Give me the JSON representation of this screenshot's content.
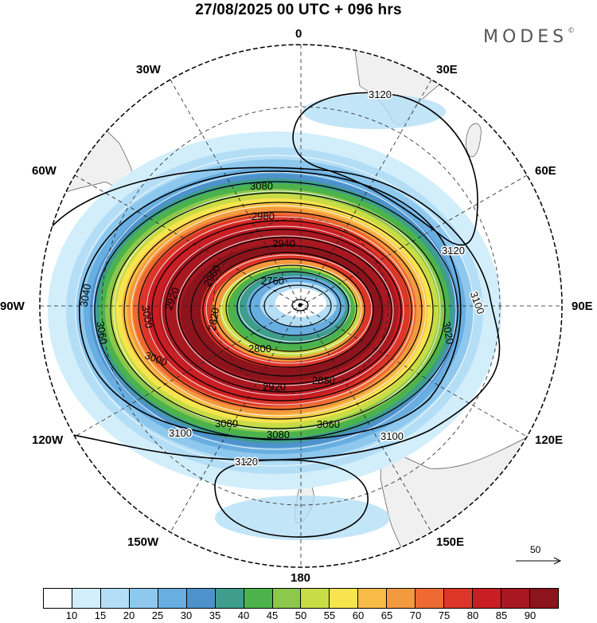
{
  "title": "27/08/2025  00 UTC  + 096 hrs",
  "logo": {
    "text": "MODES",
    "mark": "©"
  },
  "map": {
    "projection": "south-polar-stereographic",
    "longitude_labels": {
      "0": "0",
      "30E": "30E",
      "60E": "60E",
      "90E": "90E",
      "120E": "120E",
      "150E": "150E",
      "180": "180",
      "150W": "150W",
      "120W": "120W",
      "90W": "90W",
      "60W": "60W",
      "30W": "30W"
    },
    "contours": [
      {
        "label": "3120",
        "geopotential_height_m": 3120
      },
      {
        "label": "3100",
        "geopotential_height_m": 3100
      },
      {
        "label": "3080",
        "geopotential_height_m": 3080
      },
      {
        "label": "3060",
        "geopotential_height_m": 3060
      },
      {
        "label": "3040",
        "geopotential_height_m": 3040
      },
      {
        "label": "3020",
        "geopotential_height_m": 3020
      },
      {
        "label": "3000",
        "geopotential_height_m": 3000
      },
      {
        "label": "2980",
        "geopotential_height_m": 2980
      },
      {
        "label": "2960",
        "geopotential_height_m": 2960
      },
      {
        "label": "2940",
        "geopotential_height_m": 2940
      },
      {
        "label": "2920",
        "geopotential_height_m": 2920
      },
      {
        "label": "2900",
        "geopotential_height_m": 2900
      },
      {
        "label": "2880",
        "geopotential_height_m": 2880
      },
      {
        "label": "2860",
        "geopotential_height_m": 2860
      },
      {
        "label": "2840",
        "geopotential_height_m": 2840
      },
      {
        "label": "2820",
        "geopotential_height_m": 2820
      },
      {
        "label": "2800",
        "geopotential_height_m": 2800
      },
      {
        "label": "2780",
        "geopotential_height_m": 2780
      },
      {
        "label": "2760",
        "geopotential_height_m": 2760
      }
    ]
  },
  "reference_vector": {
    "label": "50"
  },
  "colorbar": {
    "ticks": [
      "10",
      "15",
      "20",
      "25",
      "30",
      "35",
      "40",
      "45",
      "50",
      "55",
      "60",
      "65",
      "70",
      "75",
      "80",
      "85",
      "90"
    ],
    "colors": [
      "#ffffff",
      "#d2eefb",
      "#b4def6",
      "#8ec8ee",
      "#68aee0",
      "#4e92cc",
      "#3f9d8c",
      "#4cb34c",
      "#8cc84c",
      "#c8dc46",
      "#f8e44e",
      "#f8bc46",
      "#f49a3e",
      "#ee6a32",
      "#dc3628",
      "#c81e24",
      "#a81820",
      "#8c141c"
    ]
  }
}
